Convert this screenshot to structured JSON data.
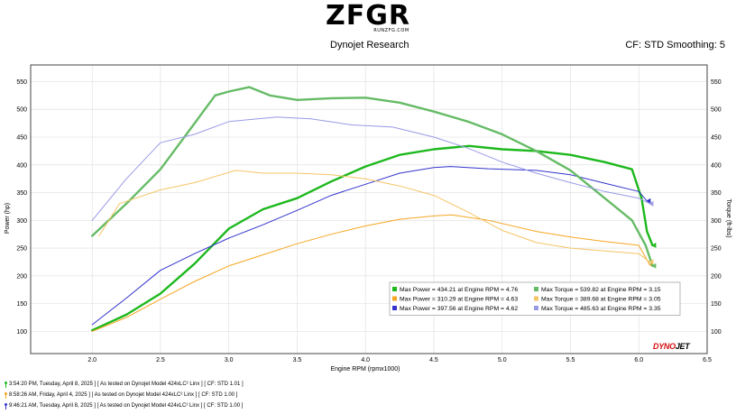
{
  "header": {
    "logo": "ZFGR",
    "logo_sub": "RUNZFG.COM",
    "title": "Dynojet Research",
    "right": "CF: STD Smoothing: 5"
  },
  "colors": {
    "green": "#1db81d",
    "green_light": "#66bb66",
    "orange": "#f5a623",
    "orange_light": "#f5c466",
    "blue": "#3333cc",
    "blue_light": "#9999e6"
  },
  "chart_data": {
    "type": "line",
    "xlabel": "Engine RPM (rpmx1000)",
    "ylabel_left": "Power (hp)",
    "ylabel_right": "Torque (ft-lbs)",
    "xlim": [
      1.55,
      6.5
    ],
    "ylim": [
      60,
      580
    ],
    "x_ticks": [
      "2.0",
      "2.5",
      "3.0",
      "3.5",
      "4.0",
      "4.5",
      "5.0",
      "5.5",
      "6.0",
      "6.5"
    ],
    "y_ticks": [
      "100",
      "150",
      "200",
      "250",
      "300",
      "350",
      "400",
      "450",
      "500",
      "550"
    ],
    "grid": true,
    "legend_position": "lower-right",
    "series": [
      {
        "name": "Max Power = 434.21 at Engine RPM = 4.76",
        "color_key": "green",
        "width": 2.4,
        "x": [
          2.0,
          2.25,
          2.5,
          2.75,
          3.0,
          3.25,
          3.5,
          3.75,
          4.0,
          4.25,
          4.5,
          4.76,
          5.0,
          5.25,
          5.5,
          5.75,
          5.95,
          6.02,
          6.06,
          6.1
        ],
        "y": [
          102,
          130,
          168,
          222,
          285,
          320,
          340,
          370,
          397,
          418,
          428,
          434,
          428,
          425,
          418,
          405,
          392,
          340,
          280,
          255
        ]
      },
      {
        "name": "Max Power = 310.29 at Engine RPM = 4.63",
        "color_key": "orange",
        "width": 1,
        "x": [
          2.0,
          2.25,
          2.5,
          2.75,
          3.0,
          3.25,
          3.5,
          3.75,
          4.0,
          4.25,
          4.5,
          4.63,
          4.9,
          5.25,
          5.5,
          5.75,
          6.0,
          6.08
        ],
        "y": [
          100,
          125,
          158,
          190,
          218,
          238,
          258,
          275,
          290,
          302,
          308,
          310,
          300,
          280,
          270,
          262,
          255,
          220
        ]
      },
      {
        "name": "Max Power = 397.56 at Engine RPM = 4.62",
        "color_key": "blue",
        "width": 1,
        "x": [
          2.0,
          2.25,
          2.5,
          2.75,
          3.0,
          3.25,
          3.5,
          3.75,
          4.0,
          4.25,
          4.5,
          4.62,
          4.9,
          5.25,
          5.5,
          5.75,
          6.0,
          6.06
        ],
        "y": [
          112,
          160,
          210,
          240,
          268,
          292,
          318,
          345,
          365,
          385,
          395,
          397,
          393,
          390,
          382,
          367,
          352,
          335
        ]
      },
      {
        "name": "Max Torque = 539.82 at Engine RPM = 3.15",
        "color_key": "green_light",
        "width": 2.4,
        "x": [
          2.0,
          2.25,
          2.5,
          2.75,
          2.9,
          3.0,
          3.15,
          3.3,
          3.5,
          3.75,
          4.0,
          4.25,
          4.5,
          4.75,
          5.0,
          5.25,
          5.5,
          5.75,
          5.95,
          6.05,
          6.1
        ],
        "y": [
          272,
          330,
          392,
          475,
          525,
          532,
          540,
          525,
          517,
          520,
          521,
          512,
          496,
          478,
          455,
          425,
          390,
          340,
          300,
          255,
          218
        ]
      },
      {
        "name": "Max Torque = 389.68 at Engine RPM = 3.05",
        "color_key": "orange_light",
        "width": 1,
        "x": [
          2.05,
          2.2,
          2.5,
          2.75,
          3.05,
          3.25,
          3.5,
          3.75,
          4.0,
          4.25,
          4.5,
          4.75,
          5.0,
          5.25,
          5.5,
          5.75,
          6.0,
          6.08
        ],
        "y": [
          272,
          330,
          355,
          368,
          390,
          385,
          385,
          382,
          375,
          362,
          345,
          315,
          282,
          260,
          250,
          245,
          240,
          225
        ]
      },
      {
        "name": "Max Torque = 485.63 at Engine RPM = 3.35",
        "color_key": "blue_light",
        "width": 1,
        "x": [
          2.0,
          2.25,
          2.5,
          2.75,
          3.0,
          3.35,
          3.6,
          3.9,
          4.2,
          4.5,
          4.75,
          5.0,
          5.25,
          5.5,
          5.75,
          6.0,
          6.08
        ],
        "y": [
          300,
          375,
          440,
          455,
          478,
          486,
          483,
          472,
          468,
          450,
          430,
          405,
          385,
          368,
          352,
          340,
          330
        ]
      }
    ]
  },
  "runs": [
    {
      "color_key": "green",
      "text": "3:54:20 PM, Tuesday, April 8, 2025 ] [ As tested on Dynojet Model 424xLC² Linx ] [ CF: STD 1.01 ]"
    },
    {
      "color_key": "orange",
      "text": "8:58:26 AM, Friday, April 4, 2025 ] [ As tested on Dynojet Model 424xLC² Linx ] [ CF: STD 1.00 ]"
    },
    {
      "color_key": "blue",
      "text": "9:46:21 AM, Tuesday, April 8, 2025 ] [ As tested on Dynojet Model 424xLC² Linx ] [ CF: STD 1.00 ]"
    }
  ],
  "brand": {
    "part1": "DYNO",
    "part2": "JET"
  }
}
